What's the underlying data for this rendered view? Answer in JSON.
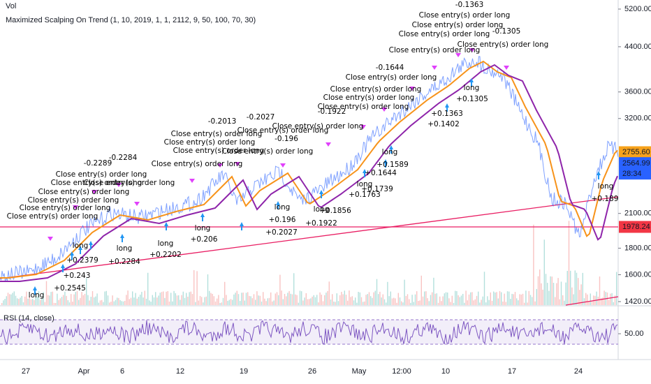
{
  "legend": {
    "volume": "Vol",
    "strategy": "Maximized Scalping On Trend (1, 10, 2019, 1, 1, 2112, 9, 50, 100, 70, 30)",
    "rsi": "RSI (14, close)"
  },
  "price_axis": {
    "ticks": [
      {
        "value": 5200,
        "label": "5200.00"
      },
      {
        "value": 4400,
        "label": "4400.00"
      },
      {
        "value": 3600,
        "label": "3600.00"
      },
      {
        "value": 3200,
        "label": "3200.00"
      },
      {
        "value": 2100,
        "label": "2100.00"
      },
      {
        "value": 1800,
        "label": "1800.00"
      },
      {
        "value": 1600,
        "label": "1600.00"
      },
      {
        "value": 1420,
        "label": "1420.00"
      }
    ],
    "log_scale": true
  },
  "price_tags": {
    "ma": {
      "value": 2755.6,
      "label": "2755.60"
    },
    "last": 2564.99,
    "countdown": "28:34",
    "level": 1978.24
  },
  "rsi_axis": {
    "tick": {
      "value": 50,
      "label": "50.00"
    }
  },
  "time_axis": [
    "27",
    "Apr",
    "6",
    "12",
    "19",
    "26",
    "May",
    "12:00",
    "10",
    "17",
    "24"
  ],
  "annotations": [
    "-0.1363",
    "Close entry(s) order long",
    "Close entry(s) order long",
    "Close entry(s) order long",
    "-0.1305",
    "Close entry(s) order long",
    "Close entry(s) order long",
    "-0.1644",
    "Close entry(s) order long",
    "Close entry(s) order long",
    "Close entry(s) order long",
    "Close entry(s) order long",
    "-0.1922",
    "Close entry(s) order long",
    "-0.2027",
    "Close entry(s) order long",
    "-0.196",
    "Close entry(s) order long",
    "-0.2013",
    "Close entry(s) order long",
    "Close entry(s) order long",
    "Close entry(s) order long",
    "Close entry(s) order long",
    "-0.2289",
    "-0.2284",
    "Close entry(s) order long",
    "Close entry(s) order long",
    "Close entry(s) order long",
    "Close entry(s) order long",
    "Close entry(s) order long",
    "Close entry(s) order long",
    "Close entry(s) order long",
    "long",
    "+0.2202",
    "long",
    "+0.2284",
    "long",
    "+0.206",
    "long",
    "+0.196",
    "+0.2027",
    "long",
    "+0.1922",
    "+0.1856",
    "long",
    "+0.1763",
    "+0.1739",
    "+0.1644",
    "long",
    "+0.1589",
    "long",
    "+0.1305",
    "+0.1363",
    "+0.1402",
    "long",
    "+0.189",
    "long",
    "+0.2545",
    "+0.243",
    "long",
    "+0.2379"
  ]
}
